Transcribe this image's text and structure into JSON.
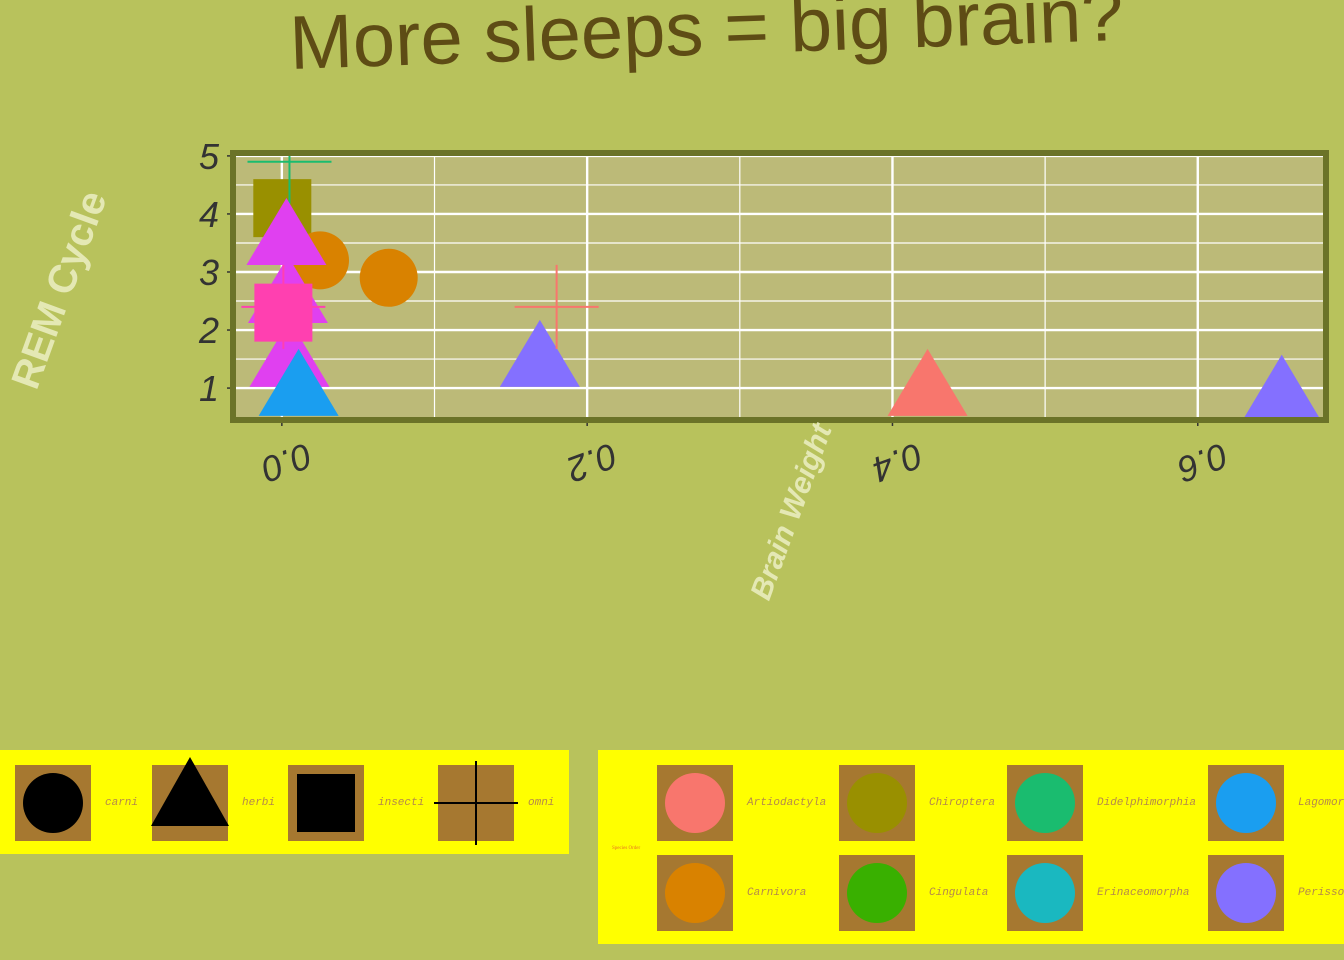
{
  "title": "More sleeps = big brain?",
  "chart_data": {
    "type": "scatter",
    "title": "More sleeps = big brain?",
    "xlabel": "Brain Weight",
    "ylabel": "REM Cycle",
    "xlim": [
      -0.032,
      0.684
    ],
    "ylim": [
      0.45,
      5.05
    ],
    "x_ticks": [
      0.0,
      0.2,
      0.4,
      0.6
    ],
    "x_tick_labels": [
      "0.0",
      "0.2",
      "0.4",
      "0.6"
    ],
    "y_ticks": [
      1,
      2,
      3,
      4,
      5
    ],
    "y_tick_labels": [
      "1",
      "2",
      "3",
      "4",
      "5"
    ],
    "grid": true,
    "shape_legend": {
      "title": "",
      "entries": [
        {
          "label": "carni",
          "shape": "circle"
        },
        {
          "label": "herbi",
          "shape": "triangle"
        },
        {
          "label": "insecti",
          "shape": "square"
        },
        {
          "label": "omni",
          "shape": "plus"
        }
      ]
    },
    "color_legend": {
      "title": "Species Order",
      "entries": [
        {
          "label": "Artiodactyla",
          "color": "#f8766d"
        },
        {
          "label": "Chiroptera",
          "color": "#999000"
        },
        {
          "label": "Didelphimorphia",
          "color": "#1abc6f"
        },
        {
          "label": "Lagomorpha",
          "color": "#1a9ef0"
        },
        {
          "label": "Carnivora",
          "color": "#d98200"
        },
        {
          "label": "Cingulata",
          "color": "#39b000"
        },
        {
          "label": "Erinaceomorpha",
          "color": "#1ab8c0"
        },
        {
          "label": "Perissodactyla",
          "color": "#8470ff"
        }
      ]
    },
    "points": [
      {
        "x": 0.0003,
        "y": 4.1,
        "shape": "square",
        "color": "#999000"
      },
      {
        "x": 0.005,
        "y": 4.9,
        "shape": "plus",
        "color": "#1abc6f"
      },
      {
        "x": 0.025,
        "y": 3.2,
        "shape": "circle",
        "color": "#d98200"
      },
      {
        "x": 0.07,
        "y": 2.9,
        "shape": "circle",
        "color": "#d98200"
      },
      {
        "x": 0.003,
        "y": 3.5,
        "shape": "triangle",
        "color": "#e040f0"
      },
      {
        "x": 0.004,
        "y": 2.5,
        "shape": "triangle",
        "color": "#e040f0"
      },
      {
        "x": 0.005,
        "y": 1.4,
        "shape": "triangle",
        "color": "#e040f0"
      },
      {
        "x": 0.001,
        "y": 2.3,
        "shape": "square",
        "color": "#ff40b0"
      },
      {
        "x": 0.001,
        "y": 2.4,
        "shape": "plus",
        "color": "#ff40b0"
      },
      {
        "x": 0.011,
        "y": 0.9,
        "shape": "triangle",
        "color": "#1a9ef0"
      },
      {
        "x": 0.169,
        "y": 1.4,
        "shape": "triangle",
        "color": "#8470ff"
      },
      {
        "x": 0.18,
        "y": 2.4,
        "shape": "plus",
        "color": "#f8766d"
      },
      {
        "x": 0.423,
        "y": 0.9,
        "shape": "triangle",
        "color": "#f8766d"
      },
      {
        "x": 0.655,
        "y": 0.8,
        "shape": "triangle",
        "color": "#8470ff"
      }
    ]
  }
}
